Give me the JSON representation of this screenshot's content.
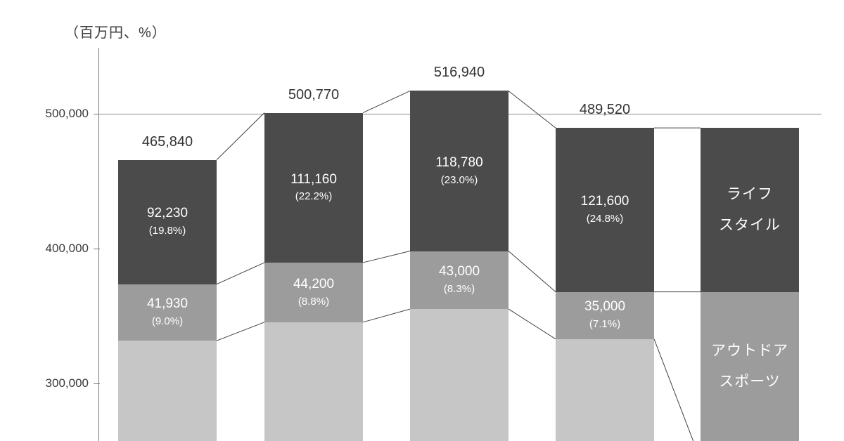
{
  "chart_data": {
    "type": "bar",
    "subtype": "stacked-column",
    "unit_label": "（百万円、%）",
    "y_axis": {
      "ticks": [
        {
          "value": 500000,
          "label": "500,000"
        },
        {
          "value": 400000,
          "label": "400,000"
        },
        {
          "value": 300000,
          "label": "300,000"
        }
      ],
      "gridline_value": 500000
    },
    "bars": [
      {
        "total": 465840,
        "total_label": "465,840",
        "segments": [
          {
            "key": "lifestyle",
            "value": 92230,
            "value_label": "92,230",
            "pct_label": "(19.8%)"
          },
          {
            "key": "outdoor",
            "value": 41930,
            "value_label": "41,930",
            "pct_label": "(9.0%)"
          }
        ]
      },
      {
        "total": 500770,
        "total_label": "500,770",
        "segments": [
          {
            "key": "lifestyle",
            "value": 111160,
            "value_label": "111,160",
            "pct_label": "(22.2%)"
          },
          {
            "key": "outdoor",
            "value": 44200,
            "value_label": "44,200",
            "pct_label": "(8.8%)"
          }
        ]
      },
      {
        "total": 516940,
        "total_label": "516,940",
        "segments": [
          {
            "key": "lifestyle",
            "value": 118780,
            "value_label": "118,780",
            "pct_label": "(23.0%)"
          },
          {
            "key": "outdoor",
            "value": 43000,
            "value_label": "43,000",
            "pct_label": "(8.3%)"
          }
        ]
      },
      {
        "total": 489520,
        "total_label": "489,520",
        "segments": [
          {
            "key": "lifestyle",
            "value": 121600,
            "value_label": "121,600",
            "pct_label": "(24.8%)"
          },
          {
            "key": "outdoor",
            "value": 35000,
            "value_label": "35,000",
            "pct_label": "(7.1%)"
          }
        ]
      }
    ],
    "legend_bar": {
      "lifestyle_lines": [
        "ライフ",
        "スタイル"
      ],
      "outdoor_lines": [
        "アウトドア",
        "スポーツ"
      ]
    },
    "colors": {
      "lifestyle": "#4b4b4b",
      "outdoor": "#9c9c9c",
      "base": "#c6c6c6",
      "line": "#404040",
      "grid": "#8a8a8a",
      "axis": "#7a7a7a",
      "text": "#3a3a3a",
      "segment_text": "#ffffff"
    }
  }
}
